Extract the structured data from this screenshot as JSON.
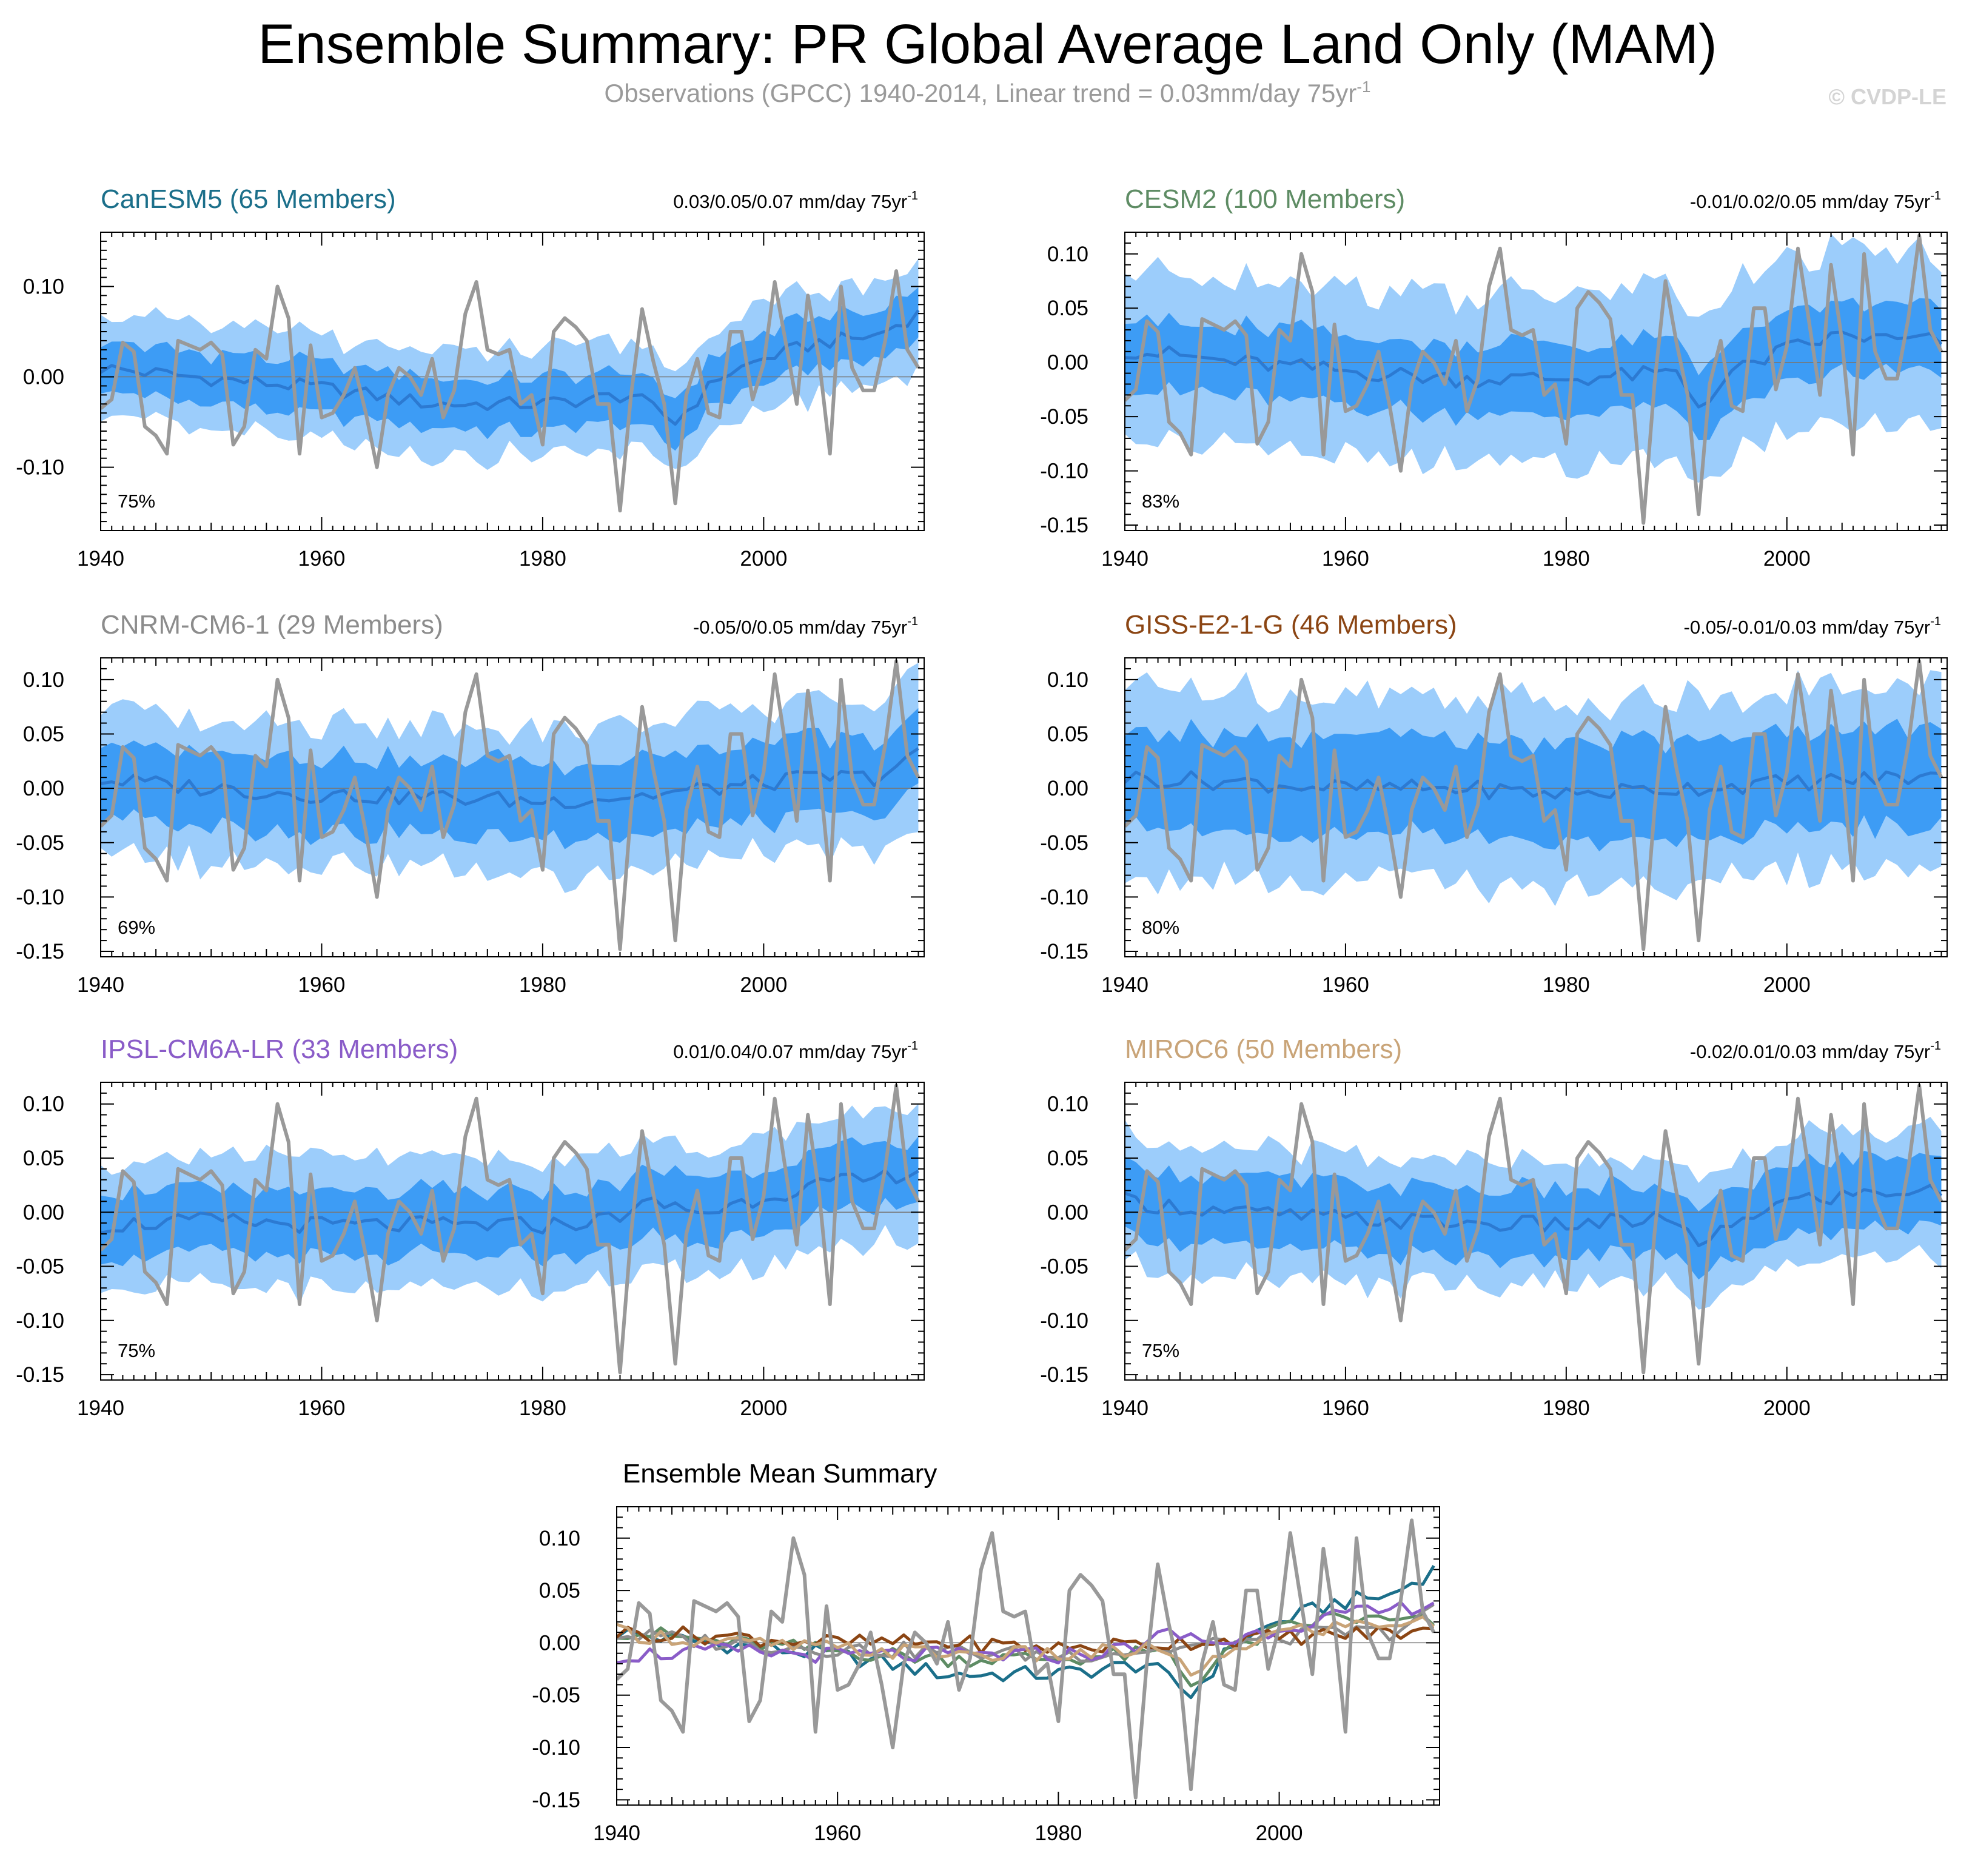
{
  "page": {
    "title": "Ensemble Summary: PR Global Average Land Only (MAM)",
    "subtitle": "Observations (GPCC) 1940-2014, Linear trend = 0.03mm/day 75yr",
    "subtitle_sup": "-1",
    "copyright": "© CVDP-LE"
  },
  "colors": {
    "band_outer": "#9ccdfb",
    "band_inner": "#3d9cf5",
    "ensemble_mean": "#2c7ad2",
    "observations": "#999999",
    "zero_line": "#777777"
  },
  "chart_data": [
    {
      "type": "area",
      "title": "CanESM5 (65 Members)",
      "title_color": "#1b6f8a",
      "trend_text": "0.03/0.05/0.07 mm/day 75yr",
      "trend_sup": "-1",
      "percent_label": "75%",
      "x_range": [
        1940,
        2014
      ],
      "xticks": [
        1940,
        1960,
        1980,
        2000
      ],
      "ylim": [
        -0.17,
        0.16
      ],
      "yticks": [
        0.1,
        0.0,
        -0.1
      ],
      "ytick_labels": [
        "0.10",
        "0.00",
        "-0.10"
      ],
      "mean_knots": [
        [
          1940,
          0.01
        ],
        [
          1950,
          -0.002
        ],
        [
          1960,
          -0.012
        ],
        [
          1970,
          -0.03
        ],
        [
          1980,
          -0.03
        ],
        [
          1988,
          -0.02
        ],
        [
          1992,
          -0.05
        ],
        [
          1996,
          0.0
        ],
        [
          2000,
          0.02
        ],
        [
          2005,
          0.038
        ],
        [
          2010,
          0.045
        ],
        [
          2014,
          0.07
        ]
      ],
      "half_inner": 0.028,
      "half_outer": 0.058
    },
    {
      "type": "area",
      "title": "CESM2 (100 Members)",
      "title_color": "#5e8c64",
      "trend_text": "-0.01/0.02/0.05 mm/day 75yr",
      "trend_sup": "-1",
      "percent_label": "83%",
      "x_range": [
        1940,
        2014
      ],
      "xticks": [
        1940,
        1960,
        1980,
        2000
      ],
      "ylim": [
        -0.155,
        0.12
      ],
      "yticks": [
        0.1,
        0.05,
        0.0,
        -0.05,
        -0.1,
        -0.15
      ],
      "ytick_labels": [
        "0.10",
        "0.05",
        "0.00",
        "-0.05",
        "-0.10",
        "-0.15"
      ],
      "mean_knots": [
        [
          1940,
          0.012
        ],
        [
          1950,
          0.0
        ],
        [
          1960,
          -0.008
        ],
        [
          1970,
          -0.015
        ],
        [
          1980,
          -0.015
        ],
        [
          1990,
          -0.01
        ],
        [
          1992,
          -0.04
        ],
        [
          1995,
          -0.01
        ],
        [
          2000,
          0.012
        ],
        [
          2005,
          0.025
        ],
        [
          2010,
          0.02
        ],
        [
          2014,
          0.02
        ]
      ],
      "half_inner": 0.032,
      "half_outer": 0.078
    },
    {
      "type": "area",
      "title": "CNRM-CM6-1 (29 Members)",
      "title_color": "#8c8c8c",
      "trend_text": "-0.05/0/0.05 mm/day 75yr",
      "trend_sup": "-1",
      "percent_label": "69%",
      "x_range": [
        1940,
        2014
      ],
      "xticks": [
        1940,
        1960,
        1980,
        2000
      ],
      "ylim": [
        -0.155,
        0.12
      ],
      "yticks": [
        0.1,
        0.05,
        0.0,
        -0.05,
        -0.1,
        -0.15
      ],
      "ytick_labels": [
        "0.10",
        "0.05",
        "0.00",
        "-0.05",
        "-0.10",
        "-0.15"
      ],
      "mean_knots": [
        [
          1940,
          0.008
        ],
        [
          1950,
          0.0
        ],
        [
          1960,
          -0.006
        ],
        [
          1970,
          -0.008
        ],
        [
          1980,
          -0.012
        ],
        [
          1990,
          -0.006
        ],
        [
          2000,
          0.005
        ],
        [
          2005,
          0.01
        ],
        [
          2010,
          0.01
        ],
        [
          2014,
          0.03
        ]
      ],
      "half_inner": 0.035,
      "half_outer": 0.068
    },
    {
      "type": "area",
      "title": "GISS-E2-1-G (46 Members)",
      "title_color": "#8b4513",
      "trend_text": "-0.05/-0.01/0.03 mm/day 75yr",
      "trend_sup": "-1",
      "percent_label": "80%",
      "x_range": [
        1940,
        2014
      ],
      "xticks": [
        1940,
        1960,
        1980,
        2000
      ],
      "ylim": [
        -0.155,
        0.12
      ],
      "yticks": [
        0.1,
        0.05,
        0.0,
        -0.05,
        -0.1,
        -0.15
      ],
      "ytick_labels": [
        "0.10",
        "0.05",
        "0.00",
        "-0.05",
        "-0.10",
        "-0.15"
      ],
      "mean_knots": [
        [
          1940,
          0.01
        ],
        [
          1950,
          0.006
        ],
        [
          1960,
          0.0
        ],
        [
          1970,
          0.0
        ],
        [
          1980,
          -0.005
        ],
        [
          1990,
          0.0
        ],
        [
          2000,
          0.005
        ],
        [
          2010,
          0.01
        ],
        [
          2014,
          0.01
        ]
      ],
      "half_inner": 0.045,
      "half_outer": 0.085
    },
    {
      "type": "area",
      "title": "IPSL-CM6A-LR (33 Members)",
      "title_color": "#8a5cc8",
      "trend_text": "0.01/0.04/0.07 mm/day 75yr",
      "trend_sup": "-1",
      "percent_label": "75%",
      "x_range": [
        1940,
        2014
      ],
      "xticks": [
        1940,
        1960,
        1980,
        2000
      ],
      "ylim": [
        -0.155,
        0.12
      ],
      "yticks": [
        0.1,
        0.05,
        0.0,
        -0.05,
        -0.1,
        -0.15
      ],
      "ytick_labels": [
        "0.10",
        "0.05",
        "0.00",
        "-0.05",
        "-0.10",
        "-0.15"
      ],
      "mean_knots": [
        [
          1940,
          -0.012
        ],
        [
          1950,
          -0.008
        ],
        [
          1960,
          -0.012
        ],
        [
          1970,
          -0.012
        ],
        [
          1980,
          -0.012
        ],
        [
          1985,
          -0.008
        ],
        [
          1990,
          0.008
        ],
        [
          1995,
          0.0
        ],
        [
          2000,
          0.015
        ],
        [
          2005,
          0.025
        ],
        [
          2010,
          0.03
        ],
        [
          2014,
          0.04
        ]
      ],
      "half_inner": 0.03,
      "half_outer": 0.06
    },
    {
      "type": "area",
      "title": "MIROC6 (50 Members)",
      "title_color": "#c9a478",
      "trend_text": "-0.02/0.01/0.03 mm/day 75yr",
      "trend_sup": "-1",
      "percent_label": "75%",
      "x_range": [
        1940,
        2014
      ],
      "xticks": [
        1940,
        1960,
        1980,
        2000
      ],
      "ylim": [
        -0.155,
        0.12
      ],
      "yticks": [
        0.1,
        0.05,
        0.0,
        -0.05,
        -0.1,
        -0.15
      ],
      "ytick_labels": [
        "0.10",
        "0.05",
        "0.00",
        "-0.05",
        "-0.10",
        "-0.15"
      ],
      "mean_knots": [
        [
          1940,
          0.01
        ],
        [
          1950,
          0.0
        ],
        [
          1960,
          -0.006
        ],
        [
          1970,
          -0.01
        ],
        [
          1980,
          -0.012
        ],
        [
          1990,
          -0.006
        ],
        [
          1992,
          -0.035
        ],
        [
          1996,
          -0.005
        ],
        [
          2000,
          0.01
        ],
        [
          2005,
          0.015
        ],
        [
          2010,
          0.02
        ],
        [
          2014,
          0.018
        ]
      ],
      "half_inner": 0.032,
      "half_outer": 0.058
    },
    {
      "type": "line",
      "title": "Ensemble Mean Summary",
      "title_color": "#000000",
      "x_range": [
        1940,
        2014
      ],
      "xticks": [
        1940,
        1960,
        1980,
        2000
      ],
      "ylim": [
        -0.155,
        0.13
      ],
      "yticks": [
        0.1,
        0.05,
        0.0,
        -0.05,
        -0.1,
        -0.15
      ],
      "ytick_labels": [
        "0.10",
        "0.05",
        "0.00",
        "-0.05",
        "-0.10",
        "-0.15"
      ],
      "series": [
        {
          "color": "#1b6f8a",
          "knots": [
            [
              1940,
              0.01
            ],
            [
              1950,
              -0.002
            ],
            [
              1960,
              -0.012
            ],
            [
              1970,
              -0.03
            ],
            [
              1980,
              -0.03
            ],
            [
              1988,
              -0.02
            ],
            [
              1992,
              -0.05
            ],
            [
              1996,
              0.0
            ],
            [
              2000,
              0.02
            ],
            [
              2005,
              0.038
            ],
            [
              2010,
              0.045
            ],
            [
              2014,
              0.07
            ]
          ]
        },
        {
          "color": "#5e8c64",
          "knots": [
            [
              1940,
              0.012
            ],
            [
              1950,
              0.0
            ],
            [
              1960,
              -0.008
            ],
            [
              1970,
              -0.015
            ],
            [
              1980,
              -0.015
            ],
            [
              1990,
              -0.01
            ],
            [
              1992,
              -0.04
            ],
            [
              1995,
              -0.01
            ],
            [
              2000,
              0.012
            ],
            [
              2005,
              0.025
            ],
            [
              2010,
              0.02
            ],
            [
              2014,
              0.02
            ]
          ]
        },
        {
          "color": "#8c8c8c",
          "knots": [
            [
              1940,
              0.008
            ],
            [
              1950,
              0.0
            ],
            [
              1960,
              -0.006
            ],
            [
              1970,
              -0.008
            ],
            [
              1980,
              -0.012
            ],
            [
              1990,
              -0.006
            ],
            [
              2000,
              0.005
            ],
            [
              2005,
              0.01
            ],
            [
              2010,
              0.01
            ],
            [
              2014,
              0.03
            ]
          ]
        },
        {
          "color": "#8b4513",
          "knots": [
            [
              1940,
              0.01
            ],
            [
              1950,
              0.006
            ],
            [
              1960,
              0.0
            ],
            [
              1970,
              0.0
            ],
            [
              1980,
              -0.005
            ],
            [
              1990,
              0.0
            ],
            [
              2000,
              0.005
            ],
            [
              2010,
              0.01
            ],
            [
              2014,
              0.01
            ]
          ]
        },
        {
          "color": "#8a5cc8",
          "knots": [
            [
              1940,
              -0.012
            ],
            [
              1950,
              -0.008
            ],
            [
              1960,
              -0.012
            ],
            [
              1970,
              -0.012
            ],
            [
              1980,
              -0.012
            ],
            [
              1985,
              -0.008
            ],
            [
              1990,
              0.008
            ],
            [
              1995,
              0.0
            ],
            [
              2000,
              0.015
            ],
            [
              2005,
              0.025
            ],
            [
              2010,
              0.03
            ],
            [
              2014,
              0.04
            ]
          ]
        },
        {
          "color": "#c9a478",
          "knots": [
            [
              1940,
              0.01
            ],
            [
              1950,
              0.0
            ],
            [
              1960,
              -0.006
            ],
            [
              1970,
              -0.01
            ],
            [
              1980,
              -0.012
            ],
            [
              1990,
              -0.006
            ],
            [
              1992,
              -0.035
            ],
            [
              1996,
              -0.005
            ],
            [
              2000,
              0.01
            ],
            [
              2005,
              0.015
            ],
            [
              2010,
              0.02
            ],
            [
              2014,
              0.018
            ]
          ]
        }
      ]
    }
  ],
  "observations": {
    "years": [
      1940,
      1941,
      1942,
      1943,
      1944,
      1945,
      1946,
      1947,
      1948,
      1949,
      1950,
      1951,
      1952,
      1953,
      1954,
      1955,
      1956,
      1957,
      1958,
      1959,
      1960,
      1961,
      1962,
      1963,
      1964,
      1965,
      1966,
      1967,
      1968,
      1969,
      1970,
      1971,
      1972,
      1973,
      1974,
      1975,
      1976,
      1977,
      1978,
      1979,
      1980,
      1981,
      1982,
      1983,
      1984,
      1985,
      1986,
      1987,
      1988,
      1989,
      1990,
      1991,
      1992,
      1993,
      1994,
      1995,
      1996,
      1997,
      1998,
      1999,
      2000,
      2001,
      2002,
      2003,
      2004,
      2005,
      2006,
      2007,
      2008,
      2009,
      2010,
      2011,
      2012,
      2013,
      2014
    ],
    "values": [
      -0.035,
      -0.025,
      0.038,
      0.028,
      -0.055,
      -0.065,
      -0.085,
      0.04,
      0.035,
      0.03,
      0.038,
      0.025,
      -0.075,
      -0.055,
      0.03,
      0.02,
      0.1,
      0.065,
      -0.085,
      0.035,
      -0.045,
      -0.04,
      -0.02,
      0.01,
      -0.04,
      -0.1,
      -0.02,
      0.01,
      0.0,
      -0.02,
      0.02,
      -0.045,
      -0.015,
      0.07,
      0.105,
      0.03,
      0.025,
      0.03,
      -0.03,
      -0.02,
      -0.075,
      0.05,
      0.065,
      0.055,
      0.04,
      -0.03,
      -0.03,
      -0.148,
      -0.02,
      0.075,
      0.018,
      -0.03,
      -0.14,
      -0.02,
      0.02,
      -0.04,
      -0.045,
      0.05,
      0.05,
      -0.025,
      0.015,
      0.105,
      0.038,
      -0.03,
      0.09,
      0.02,
      -0.085,
      0.1,
      0.01,
      -0.015,
      -0.015,
      0.04,
      0.117,
      0.03,
      0.01
    ]
  }
}
